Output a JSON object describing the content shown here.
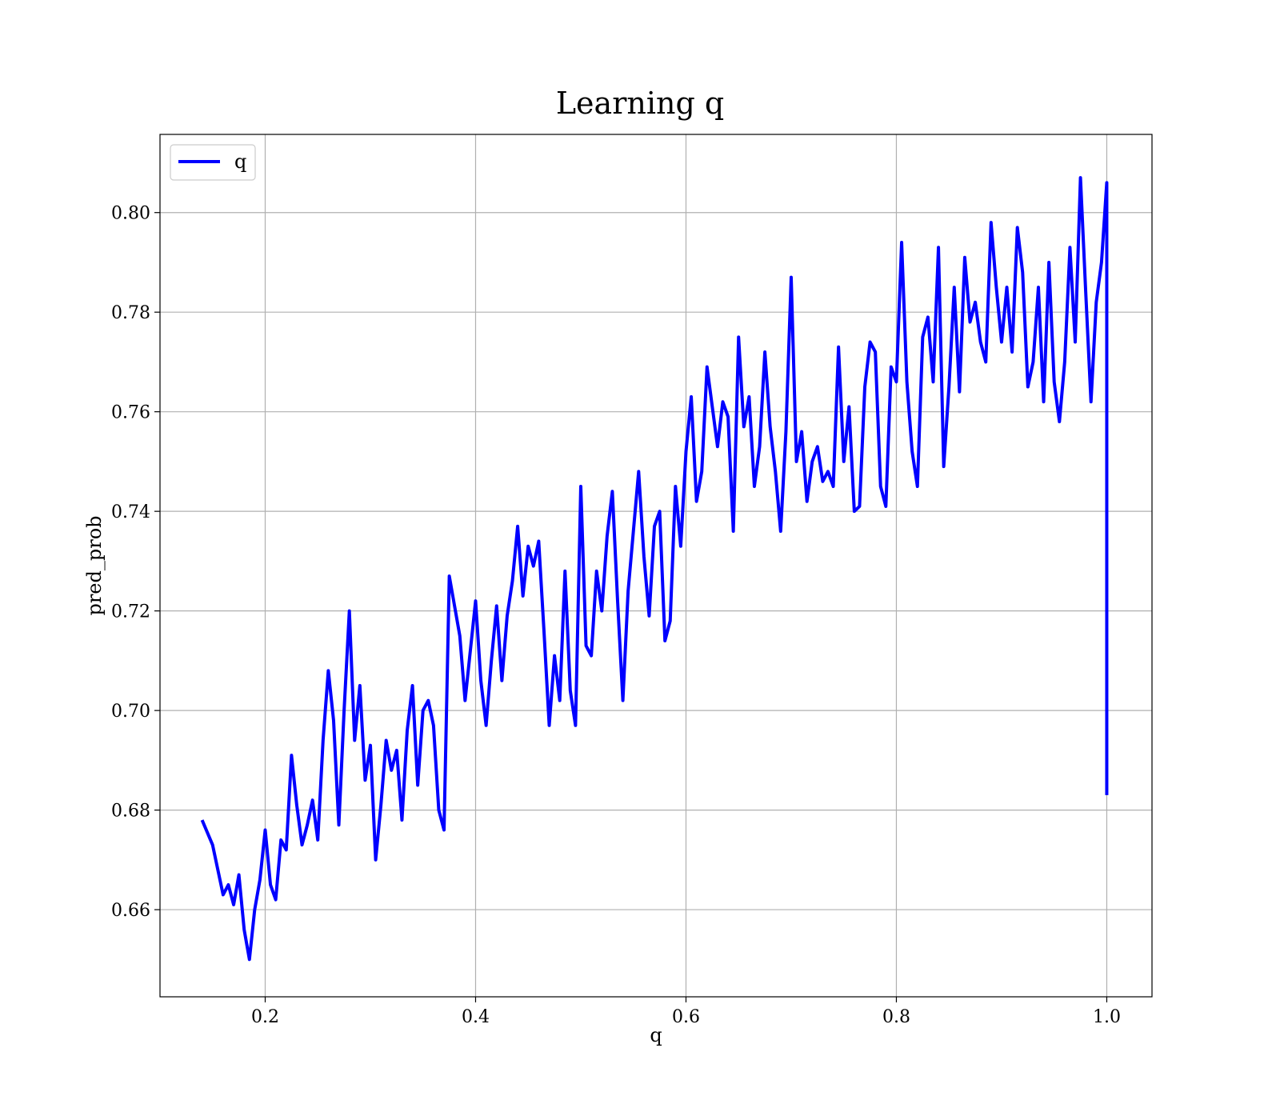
{
  "chart_data": {
    "type": "line",
    "title": "Learning q",
    "xlabel": "q",
    "ylabel": "pred_prob",
    "xlim": [
      0.1,
      1.043
    ],
    "ylim": [
      0.6425,
      0.8157
    ],
    "xticks": [
      0.2,
      0.4,
      0.6,
      0.8,
      1.0
    ],
    "xtick_labels": [
      "0.2",
      "0.4",
      "0.6",
      "0.8",
      "1.0"
    ],
    "yticks": [
      0.66,
      0.68,
      0.7,
      0.72,
      0.74,
      0.76,
      0.78,
      0.8
    ],
    "ytick_labels": [
      "0.66",
      "0.68",
      "0.70",
      "0.72",
      "0.74",
      "0.76",
      "0.78",
      "0.80"
    ],
    "grid": true,
    "legend_position": "top-left",
    "series": [
      {
        "name": "q",
        "color": "#0000ff",
        "x": [
          0.14,
          0.15,
          0.16,
          0.165,
          0.17,
          0.175,
          0.18,
          0.185,
          0.19,
          0.195,
          0.2,
          0.205,
          0.21,
          0.215,
          0.22,
          0.225,
          0.23,
          0.235,
          0.24,
          0.245,
          0.25,
          0.255,
          0.26,
          0.265,
          0.27,
          0.275,
          0.28,
          0.285,
          0.29,
          0.295,
          0.3,
          0.305,
          0.31,
          0.315,
          0.32,
          0.325,
          0.33,
          0.335,
          0.34,
          0.345,
          0.35,
          0.355,
          0.36,
          0.365,
          0.37,
          0.375,
          0.38,
          0.385,
          0.39,
          0.395,
          0.4,
          0.405,
          0.41,
          0.415,
          0.42,
          0.425,
          0.43,
          0.435,
          0.44,
          0.445,
          0.45,
          0.455,
          0.46,
          0.465,
          0.47,
          0.475,
          0.48,
          0.485,
          0.49,
          0.495,
          0.5,
          0.505,
          0.51,
          0.515,
          0.52,
          0.525,
          0.53,
          0.535,
          0.54,
          0.545,
          0.55,
          0.555,
          0.56,
          0.565,
          0.57,
          0.575,
          0.58,
          0.585,
          0.59,
          0.595,
          0.6,
          0.605,
          0.61,
          0.615,
          0.62,
          0.625,
          0.63,
          0.635,
          0.64,
          0.645,
          0.65,
          0.655,
          0.66,
          0.665,
          0.67,
          0.675,
          0.68,
          0.685,
          0.69,
          0.695,
          0.7,
          0.705,
          0.71,
          0.715,
          0.72,
          0.725,
          0.73,
          0.735,
          0.74,
          0.745,
          0.75,
          0.755,
          0.76,
          0.765,
          0.77,
          0.775,
          0.78,
          0.785,
          0.79,
          0.795,
          0.8,
          0.805,
          0.81,
          0.815,
          0.82,
          0.825,
          0.83,
          0.835,
          0.84,
          0.845,
          0.85,
          0.855,
          0.86,
          0.865,
          0.87,
          0.875,
          0.88,
          0.885,
          0.89,
          0.895,
          0.9,
          0.905,
          0.91,
          0.915,
          0.92,
          0.925,
          0.93,
          0.935,
          0.94,
          0.945,
          0.95,
          0.955,
          0.96,
          0.965,
          0.97,
          0.975,
          0.98,
          0.985,
          0.99,
          0.995,
          1.0,
          1.0,
          1.0
        ],
        "y": [
          0.678,
          0.673,
          0.663,
          0.665,
          0.661,
          0.667,
          0.656,
          0.65,
          0.66,
          0.666,
          0.676,
          0.665,
          0.662,
          0.674,
          0.672,
          0.691,
          0.681,
          0.673,
          0.677,
          0.682,
          0.674,
          0.694,
          0.708,
          0.698,
          0.677,
          0.7,
          0.72,
          0.694,
          0.705,
          0.686,
          0.693,
          0.67,
          0.681,
          0.694,
          0.688,
          0.692,
          0.678,
          0.696,
          0.705,
          0.685,
          0.7,
          0.702,
          0.697,
          0.68,
          0.676,
          0.727,
          0.721,
          0.715,
          0.702,
          0.712,
          0.722,
          0.706,
          0.697,
          0.71,
          0.721,
          0.706,
          0.719,
          0.726,
          0.737,
          0.723,
          0.733,
          0.729,
          0.734,
          0.716,
          0.697,
          0.711,
          0.702,
          0.728,
          0.704,
          0.697,
          0.745,
          0.713,
          0.711,
          0.728,
          0.72,
          0.735,
          0.744,
          0.722,
          0.702,
          0.724,
          0.736,
          0.748,
          0.731,
          0.719,
          0.737,
          0.74,
          0.714,
          0.718,
          0.745,
          0.733,
          0.752,
          0.763,
          0.742,
          0.748,
          0.769,
          0.761,
          0.753,
          0.762,
          0.759,
          0.736,
          0.775,
          0.757,
          0.763,
          0.745,
          0.753,
          0.772,
          0.757,
          0.748,
          0.736,
          0.756,
          0.787,
          0.75,
          0.756,
          0.742,
          0.75,
          0.753,
          0.746,
          0.748,
          0.745,
          0.773,
          0.75,
          0.761,
          0.74,
          0.741,
          0.765,
          0.774,
          0.772,
          0.745,
          0.741,
          0.769,
          0.766,
          0.794,
          0.766,
          0.752,
          0.745,
          0.775,
          0.779,
          0.766,
          0.793,
          0.749,
          0.765,
          0.785,
          0.764,
          0.791,
          0.778,
          0.782,
          0.774,
          0.77,
          0.798,
          0.785,
          0.774,
          0.785,
          0.772,
          0.797,
          0.788,
          0.765,
          0.77,
          0.785,
          0.762,
          0.79,
          0.766,
          0.758,
          0.77,
          0.793,
          0.774,
          0.807,
          0.784,
          0.762,
          0.782,
          0.79,
          0.806,
          0.786,
          0.683
        ]
      }
    ]
  }
}
